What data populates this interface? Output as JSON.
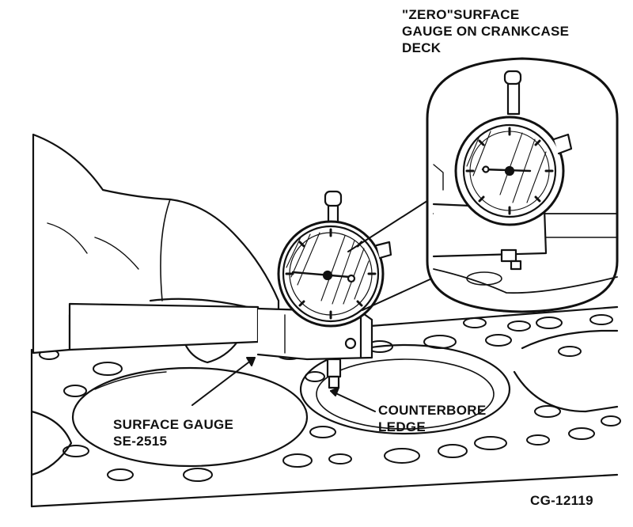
{
  "labels": {
    "zero_surface": [
      "\"ZERO\"SURFACE",
      "GAUGE ON CRANKCASE",
      "DECK"
    ],
    "surface_gauge": [
      "SURFACE GAUGE",
      "SE-2515"
    ],
    "counterbore": [
      "COUNTERBORE",
      "LEDGE"
    ],
    "figure_code": "CG-12119"
  },
  "colors": {
    "ink": "#111111",
    "paper": "#ffffff"
  },
  "icons": [
    "dial-indicator",
    "hand",
    "gauge-block",
    "crankcase-deck"
  ]
}
